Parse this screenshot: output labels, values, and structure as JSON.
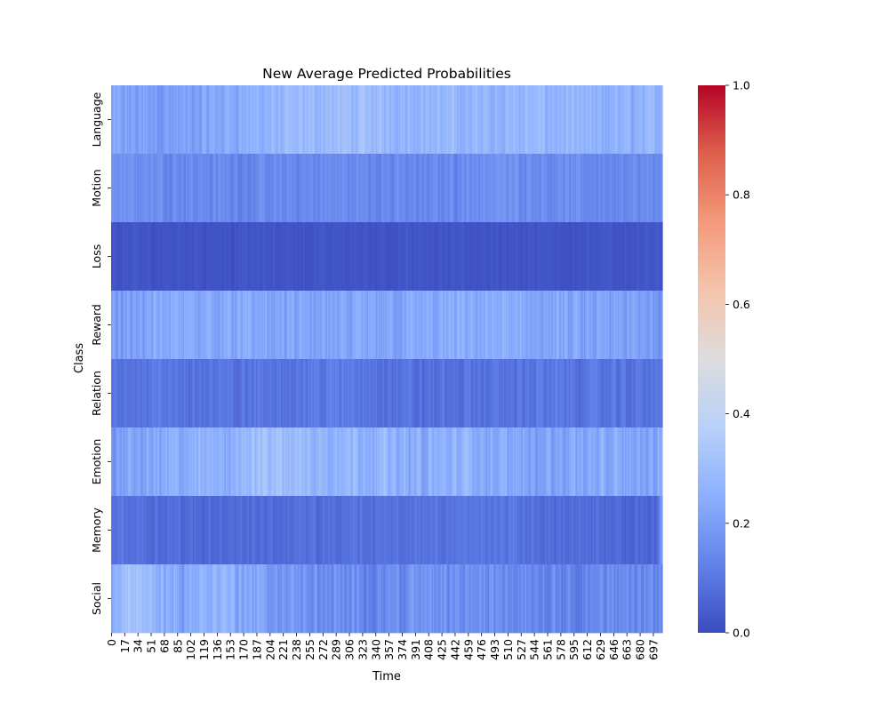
{
  "chart_data": {
    "type": "heatmap",
    "title": "New Average Predicted Probabilities",
    "xlabel": "Time",
    "ylabel": "Class",
    "rows": [
      "Language",
      "Motion",
      "Loss",
      "Reward",
      "Relation",
      "Emotion",
      "Memory",
      "Social"
    ],
    "n_columns": 709,
    "x_tick_labels": [
      "0",
      "17",
      "34",
      "51",
      "68",
      "85",
      "102",
      "119",
      "136",
      "153",
      "170",
      "187",
      "204",
      "221",
      "238",
      "255",
      "272",
      "289",
      "306",
      "323",
      "340",
      "357",
      "374",
      "391",
      "408",
      "425",
      "442",
      "459",
      "476",
      "493",
      "510",
      "527",
      "544",
      "561",
      "578",
      "595",
      "612",
      "629",
      "646",
      "663",
      "680",
      "697"
    ],
    "x_tick_step": 17,
    "colorbar": {
      "min": 0.0,
      "max": 1.0,
      "tick_labels": [
        "0.0",
        "0.2",
        "0.4",
        "0.6",
        "0.8",
        "1.0"
      ],
      "colormap": "coolwarm"
    },
    "row_profiles": {
      "Language": {
        "mean": 0.26,
        "spread": 0.07,
        "segments": [
          [
            0,
            0.21
          ],
          [
            100,
            0.2
          ],
          [
            150,
            0.24
          ],
          [
            230,
            0.28
          ],
          [
            300,
            0.3
          ],
          [
            380,
            0.28
          ],
          [
            470,
            0.27
          ],
          [
            540,
            0.28
          ],
          [
            620,
            0.25
          ],
          [
            680,
            0.26
          ],
          [
            708,
            0.27
          ]
        ]
      },
      "Motion": {
        "mean": 0.16,
        "spread": 0.05,
        "segments": [
          [
            0,
            0.18
          ],
          [
            100,
            0.15
          ],
          [
            200,
            0.14
          ],
          [
            300,
            0.15
          ],
          [
            400,
            0.14
          ],
          [
            500,
            0.17
          ],
          [
            600,
            0.15
          ],
          [
            708,
            0.14
          ]
        ]
      },
      "Loss": {
        "mean": 0.02,
        "spread": 0.02,
        "segments": [
          [
            0,
            0.02
          ],
          [
            708,
            0.02
          ]
        ]
      },
      "Reward": {
        "mean": 0.21,
        "spread": 0.07,
        "segments": [
          [
            0,
            0.2
          ],
          [
            100,
            0.24
          ],
          [
            200,
            0.22
          ],
          [
            300,
            0.21
          ],
          [
            400,
            0.23
          ],
          [
            500,
            0.24
          ],
          [
            600,
            0.21
          ],
          [
            708,
            0.2
          ]
        ]
      },
      "Relation": {
        "mean": 0.1,
        "spread": 0.05,
        "segments": [
          [
            0,
            0.1
          ],
          [
            150,
            0.09
          ],
          [
            300,
            0.11
          ],
          [
            400,
            0.08
          ],
          [
            550,
            0.1
          ],
          [
            708,
            0.09
          ]
        ]
      },
      "Emotion": {
        "mean": 0.25,
        "spread": 0.08,
        "segments": [
          [
            0,
            0.2
          ],
          [
            80,
            0.24
          ],
          [
            150,
            0.26
          ],
          [
            200,
            0.32
          ],
          [
            260,
            0.28
          ],
          [
            330,
            0.28
          ],
          [
            400,
            0.24
          ],
          [
            460,
            0.26
          ],
          [
            520,
            0.22
          ],
          [
            600,
            0.23
          ],
          [
            708,
            0.22
          ]
        ]
      },
      "Memory": {
        "mean": 0.08,
        "spread": 0.04,
        "segments": [
          [
            0,
            0.1
          ],
          [
            100,
            0.07
          ],
          [
            300,
            0.08
          ],
          [
            500,
            0.1
          ],
          [
            600,
            0.07
          ],
          [
            700,
            0.06
          ],
          [
            708,
            0.2
          ]
        ]
      },
      "Social": {
        "mean": 0.2,
        "spread": 0.08,
        "segments": [
          [
            0,
            0.22
          ],
          [
            20,
            0.33
          ],
          [
            90,
            0.22
          ],
          [
            130,
            0.28
          ],
          [
            200,
            0.2
          ],
          [
            300,
            0.14
          ],
          [
            400,
            0.17
          ],
          [
            500,
            0.16
          ],
          [
            600,
            0.14
          ],
          [
            708,
            0.15
          ]
        ]
      }
    }
  }
}
